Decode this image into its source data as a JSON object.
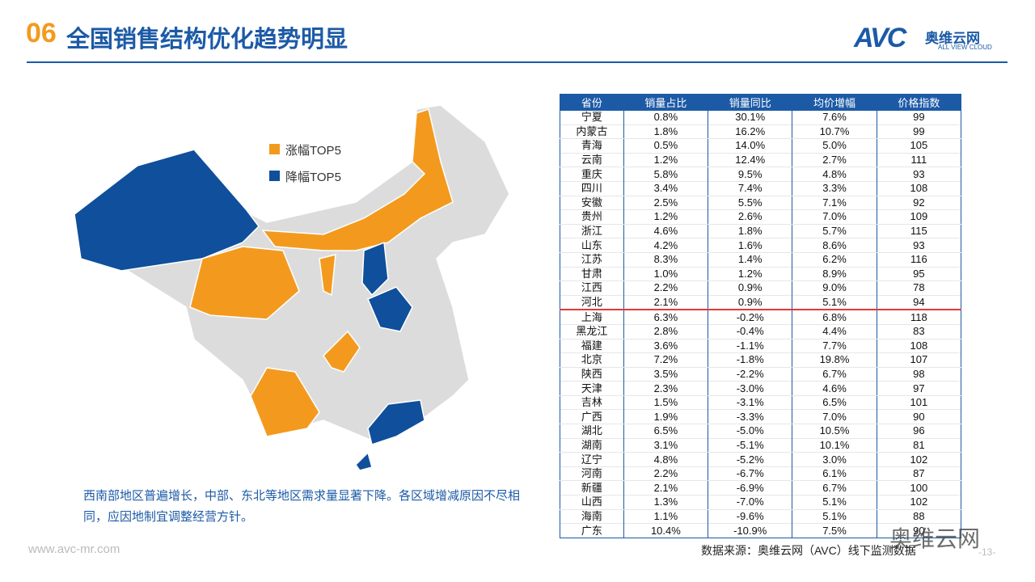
{
  "header": {
    "number": "06",
    "title": "全国销售结构优化趋势明显",
    "logo": {
      "mark": "AVC",
      "name": "奥维云网",
      "sub": "ALL VIEW CLOUD"
    }
  },
  "legend": {
    "rise": "涨幅TOP5",
    "fall": "降幅TOP5"
  },
  "caption": "西南部地区普遍增长，中部、东北等地区需求量显著下降。各区域增减原因不尽相同，应因地制宜调整经营方针。",
  "table": {
    "columns": [
      "省份",
      "销量占比",
      "销量同比",
      "均价增幅",
      "价格指数"
    ],
    "rows": [
      [
        "宁夏",
        "0.8%",
        "30.1%",
        "7.6%",
        "99"
      ],
      [
        "内蒙古",
        "1.8%",
        "16.2%",
        "10.7%",
        "99"
      ],
      [
        "青海",
        "0.5%",
        "14.0%",
        "5.0%",
        "105"
      ],
      [
        "云南",
        "1.2%",
        "12.4%",
        "2.7%",
        "111"
      ],
      [
        "重庆",
        "5.8%",
        "9.5%",
        "4.8%",
        "93"
      ],
      [
        "四川",
        "3.4%",
        "7.4%",
        "3.3%",
        "108"
      ],
      [
        "安徽",
        "2.5%",
        "5.5%",
        "7.1%",
        "92"
      ],
      [
        "贵州",
        "1.2%",
        "2.6%",
        "7.0%",
        "109"
      ],
      [
        "浙江",
        "4.6%",
        "1.8%",
        "5.7%",
        "115"
      ],
      [
        "山东",
        "4.2%",
        "1.6%",
        "8.6%",
        "93"
      ],
      [
        "江苏",
        "8.3%",
        "1.4%",
        "6.2%",
        "116"
      ],
      [
        "甘肃",
        "1.0%",
        "1.2%",
        "8.9%",
        "95"
      ],
      [
        "江西",
        "2.2%",
        "0.9%",
        "9.0%",
        "78"
      ],
      [
        "河北",
        "2.1%",
        "0.9%",
        "5.1%",
        "94"
      ],
      [
        "上海",
        "6.3%",
        "-0.2%",
        "6.8%",
        "118"
      ],
      [
        "黑龙江",
        "2.8%",
        "-0.4%",
        "4.4%",
        "83"
      ],
      [
        "福建",
        "3.6%",
        "-1.1%",
        "7.7%",
        "108"
      ],
      [
        "北京",
        "7.2%",
        "-1.8%",
        "19.8%",
        "107"
      ],
      [
        "陕西",
        "3.5%",
        "-2.2%",
        "6.7%",
        "98"
      ],
      [
        "天津",
        "2.3%",
        "-3.0%",
        "4.6%",
        "97"
      ],
      [
        "吉林",
        "1.5%",
        "-3.1%",
        "6.5%",
        "101"
      ],
      [
        "广西",
        "1.9%",
        "-3.3%",
        "7.0%",
        "90"
      ],
      [
        "湖北",
        "6.5%",
        "-5.0%",
        "10.5%",
        "96"
      ],
      [
        "湖南",
        "3.1%",
        "-5.1%",
        "10.1%",
        "81"
      ],
      [
        "辽宁",
        "4.8%",
        "-5.2%",
        "3.0%",
        "102"
      ],
      [
        "河南",
        "2.2%",
        "-6.7%",
        "6.1%",
        "87"
      ],
      [
        "新疆",
        "2.1%",
        "-6.9%",
        "6.7%",
        "100"
      ],
      [
        "山西",
        "1.3%",
        "-7.0%",
        "5.1%",
        "102"
      ],
      [
        "海南",
        "1.1%",
        "-9.6%",
        "5.1%",
        "88"
      ],
      [
        "广东",
        "10.4%",
        "-10.9%",
        "7.5%",
        "90"
      ]
    ]
  },
  "source": "数据来源：奥维云网（AVC）线下监测数据",
  "footer": {
    "url": "www.avc-mr.com",
    "page": "-13-",
    "watermark": "奥维云网"
  }
}
